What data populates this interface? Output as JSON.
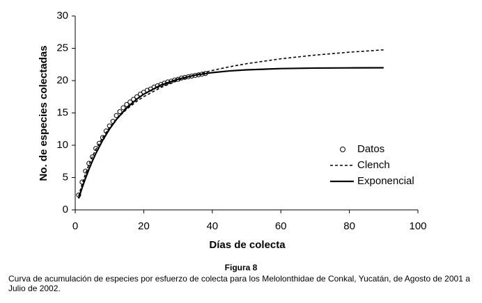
{
  "chart_data": {
    "type": "line",
    "xlabel": "Días de colecta",
    "ylabel": "No. de especies colectadas",
    "xlim": [
      0,
      100
    ],
    "xticks": [
      0,
      20,
      40,
      60,
      80,
      100
    ],
    "ylim": [
      0,
      30
    ],
    "yticks": [
      0,
      5,
      10,
      15,
      20,
      25,
      30
    ],
    "figure_label": "Figura 8",
    "caption": "Curva de acumulación de especies por esfuerzo de colecta para los Melolonthidae de Conkal, Yucatán, de Agosto de 2001 a Julio de 2002.",
    "series": [
      {
        "name": "Datos",
        "mark": "circle",
        "color": "#000000",
        "x": [
          1,
          2,
          3,
          4,
          5,
          6,
          7,
          8,
          9,
          10,
          11,
          12,
          13,
          14,
          15,
          16,
          17,
          18,
          19,
          20,
          21,
          22,
          23,
          24,
          25,
          26,
          27,
          28,
          29,
          30,
          31,
          32,
          33,
          34,
          35,
          36,
          37,
          38
        ],
        "values": [
          2.3,
          4.3,
          6,
          7.2,
          8.2,
          9.5,
          10.3,
          11.2,
          12.2,
          13,
          13.7,
          14.6,
          15.2,
          15.8,
          16.3,
          16.7,
          17.1,
          17.5,
          17.9,
          18.2,
          18.5,
          18.7,
          19,
          19.2,
          19.4,
          19.6,
          19.8,
          19.9,
          20.1,
          20.2,
          20.4,
          20.5,
          20.6,
          20.7,
          20.8,
          20.9,
          21,
          21.1
        ]
      },
      {
        "name": "Clench",
        "mark": "dashed",
        "color": "#000000",
        "x": [
          1,
          2,
          3,
          4,
          5,
          6,
          8,
          10,
          12,
          15,
          18,
          20,
          25,
          30,
          35,
          40,
          45,
          50,
          60,
          70,
          80,
          90
        ],
        "values": [
          2.15,
          4.0,
          5.6,
          7.0,
          8.23,
          9.33,
          11.2,
          12.73,
          14.01,
          15.57,
          16.82,
          17.52,
          18.94,
          20.03,
          20.88,
          21.57,
          22.14,
          22.62,
          23.38,
          23.95,
          24.4,
          24.76
        ]
      },
      {
        "name": "Exponencial",
        "mark": "solid",
        "color": "#000000",
        "x": [
          1,
          2,
          3,
          4,
          5,
          6,
          8,
          10,
          12,
          15,
          18,
          20,
          25,
          30,
          35,
          40,
          45,
          50,
          60,
          70,
          80,
          90
        ],
        "values": [
          1.77,
          3.4,
          4.9,
          6.28,
          7.55,
          8.71,
          10.76,
          12.5,
          13.97,
          15.76,
          17.15,
          17.9,
          19.31,
          20.23,
          20.84,
          21.24,
          21.5,
          21.67,
          21.86,
          21.94,
          21.97,
          21.99
        ]
      }
    ]
  }
}
